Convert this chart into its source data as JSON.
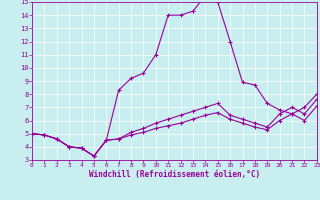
{
  "xlabel": "Windchill (Refroidissement éolien,°C)",
  "background_color": "#c8eef0",
  "line_color": "#990099",
  "grid_color": "#ffffff",
  "xlim": [
    0,
    23
  ],
  "ylim": [
    3,
    15
  ],
  "xticks": [
    0,
    1,
    2,
    3,
    4,
    5,
    6,
    7,
    8,
    9,
    10,
    11,
    12,
    13,
    14,
    15,
    16,
    17,
    18,
    19,
    20,
    21,
    22,
    23
  ],
  "yticks": [
    3,
    4,
    5,
    6,
    7,
    8,
    9,
    10,
    11,
    12,
    13,
    14,
    15
  ],
  "curve1_x": [
    0,
    1,
    2,
    3,
    4,
    5,
    6,
    7,
    8,
    9,
    10,
    11,
    12,
    13,
    14,
    15,
    16,
    17,
    18,
    19,
    20,
    21,
    22,
    23
  ],
  "curve1_y": [
    5.0,
    4.9,
    4.6,
    4.0,
    3.9,
    3.3,
    4.5,
    8.3,
    9.2,
    9.6,
    11.0,
    14.0,
    14.0,
    14.3,
    15.5,
    15.0,
    12.0,
    8.9,
    8.7,
    7.3,
    6.8,
    6.5,
    7.0,
    8.0
  ],
  "curve2_x": [
    0,
    1,
    2,
    3,
    4,
    5,
    6,
    7,
    8,
    9,
    10,
    11,
    12,
    13,
    14,
    15,
    16,
    17,
    18,
    19,
    20,
    21,
    22,
    23
  ],
  "curve2_y": [
    5.0,
    4.9,
    4.6,
    4.0,
    3.9,
    3.3,
    4.5,
    4.6,
    5.1,
    5.4,
    5.8,
    6.1,
    6.4,
    6.7,
    7.0,
    7.3,
    6.4,
    6.1,
    5.8,
    5.5,
    6.5,
    7.0,
    6.5,
    7.6
  ],
  "curve3_x": [
    0,
    1,
    2,
    3,
    4,
    5,
    6,
    7,
    8,
    9,
    10,
    11,
    12,
    13,
    14,
    15,
    16,
    17,
    18,
    19,
    20,
    21,
    22,
    23
  ],
  "curve3_y": [
    5.0,
    4.9,
    4.6,
    4.0,
    3.9,
    3.3,
    4.5,
    4.6,
    4.9,
    5.1,
    5.4,
    5.6,
    5.8,
    6.1,
    6.4,
    6.6,
    6.1,
    5.8,
    5.5,
    5.3,
    6.0,
    6.5,
    6.0,
    7.1
  ]
}
